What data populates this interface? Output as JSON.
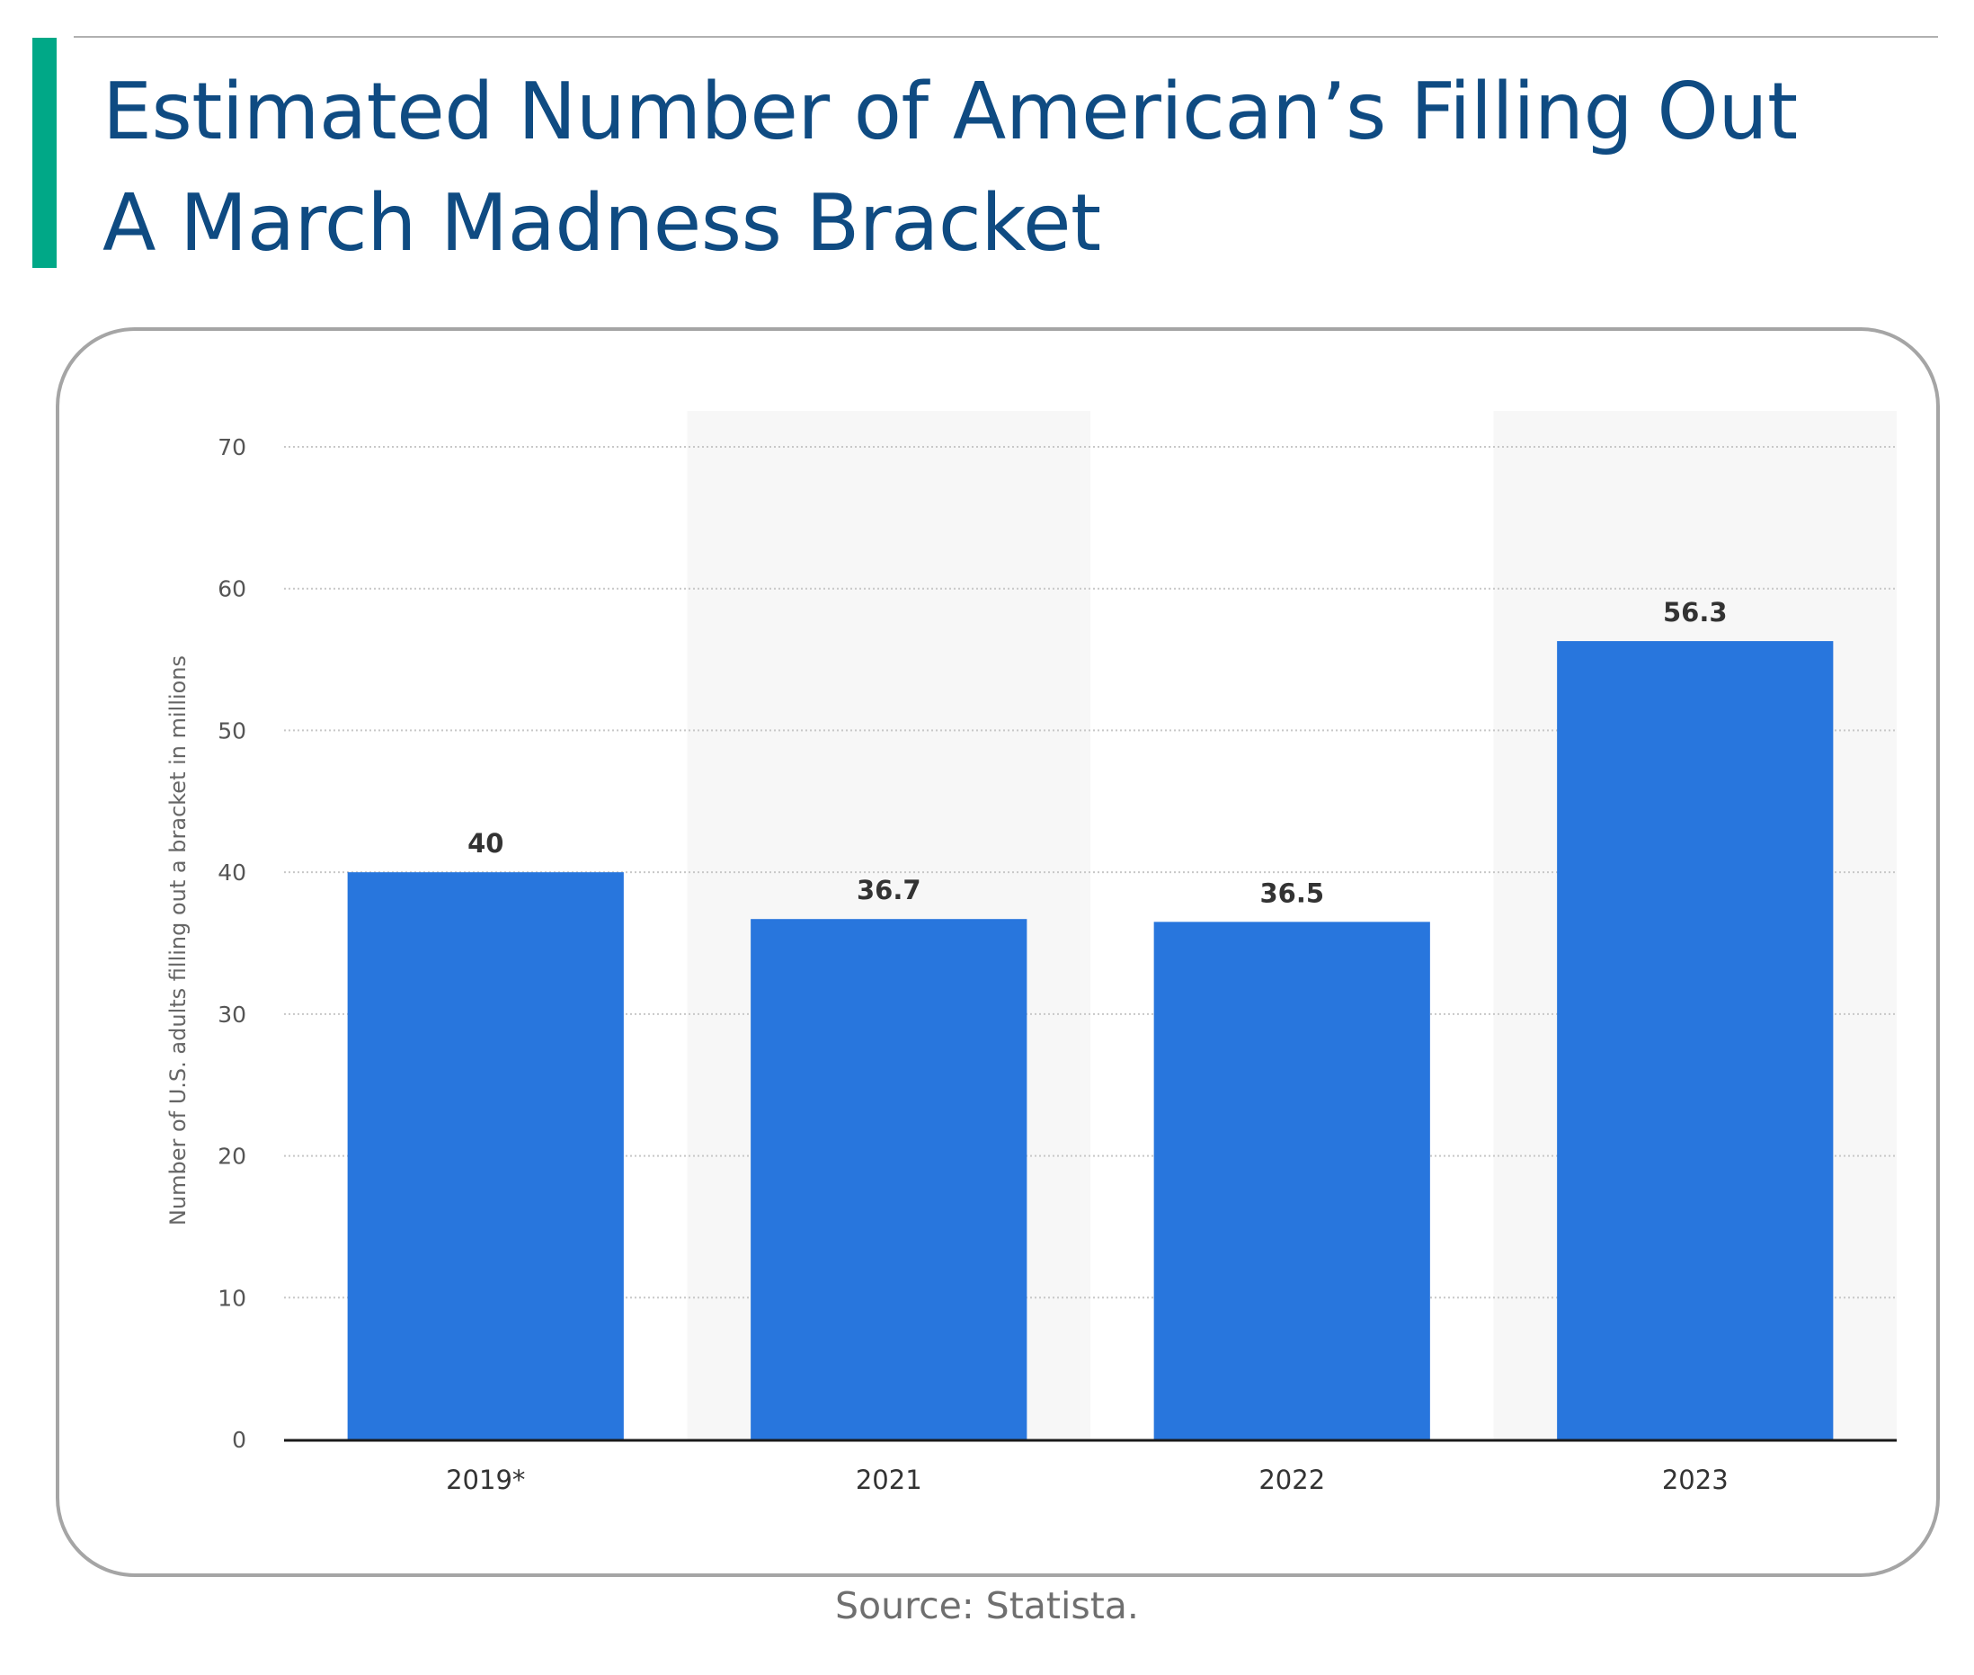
{
  "header": {
    "title": "Estimated Number of American’s Filling Out A March Madness Bracket"
  },
  "footer": {
    "source": "Source: Statista."
  },
  "colors": {
    "accent": "#00a887",
    "title": "#0f4b82",
    "bar": "#2876dd",
    "band": "#f7f7f7",
    "grid": "#c8c8c8"
  },
  "chart_data": {
    "type": "bar",
    "title": "Estimated Number of American’s Filling Out A March Madness Bracket",
    "xlabel": "",
    "ylabel": "Number of U.S. adults filling out a bracket in millions",
    "categories": [
      "2019*",
      "2021",
      "2022",
      "2023"
    ],
    "values": [
      40,
      36.7,
      36.5,
      56.3
    ],
    "value_labels": [
      "40",
      "36.7",
      "36.5",
      "56.3"
    ],
    "ylim": [
      0,
      70
    ],
    "yticks": [
      0,
      10,
      20,
      30,
      40,
      50,
      60,
      70
    ],
    "grid": true,
    "legend": "none"
  }
}
